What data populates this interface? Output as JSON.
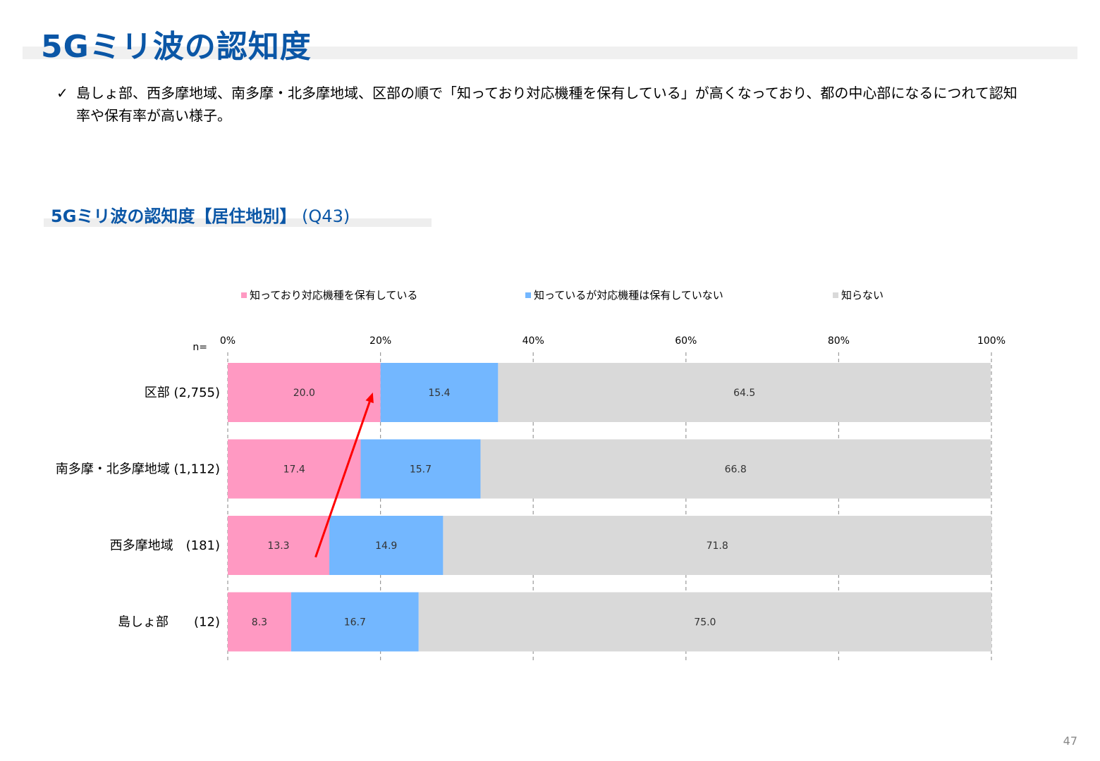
{
  "header": {
    "title": "5Gミリ波の認知度",
    "bullet_check": "✓",
    "bullet_text": "島しょ部、西多摩地域、南多摩・北多摩地域、区部の順で「知っており対応機種を保有している」が高くなっており、都の中心部になるにつれて認知率や保有率が高い様子。"
  },
  "chart_title": {
    "main": "5Gミリ波の認知度【居住地別】",
    "question": "(Q43)"
  },
  "page_number": "47",
  "colors": {
    "title": "#0a56a6",
    "owns": "#ff99c2",
    "knows_no_device": "#73b7ff",
    "unaware": "#d9d9d9",
    "arrow": "#ff0000"
  },
  "chart_data": {
    "type": "bar",
    "orientation": "horizontal",
    "stacked": true,
    "n_label": "n=",
    "categories": [
      "区部 (2,755)",
      "南多摩・北多摩地域 (1,112)",
      "西多摩地域　(181)",
      "島しょ部　　(12)"
    ],
    "xlim": [
      0,
      100
    ],
    "xticks": [
      "0%",
      "20%",
      "40%",
      "60%",
      "80%",
      "100%"
    ],
    "grid": "vertical dashed",
    "legend_position": "top",
    "series": [
      {
        "name": "知っており対応機種を保有している",
        "values": [
          20.0,
          17.4,
          13.3,
          8.3
        ]
      },
      {
        "name": "知っているが対応機種は保有していない",
        "values": [
          15.4,
          15.7,
          14.9,
          16.7
        ]
      },
      {
        "name": "知らない",
        "values": [
          64.5,
          66.8,
          71.8,
          75.0
        ]
      }
    ],
    "annotations": [
      {
        "type": "arrow",
        "from": {
          "category": "西多摩地域　(181)",
          "x": 11.5
        },
        "to": {
          "category": "区部 (2,755)",
          "x": 19.0
        }
      }
    ]
  }
}
